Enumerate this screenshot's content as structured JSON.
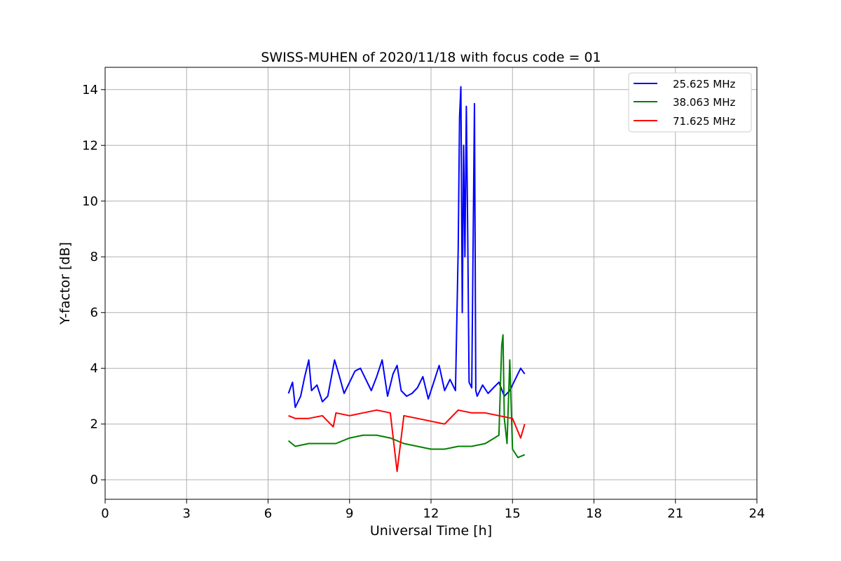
{
  "chart_data": {
    "type": "line",
    "title": "SWISS-MUHEN of 2020/11/18 with focus code = 01",
    "xlabel": "Universal Time [h]",
    "ylabel": "Y-factor [dB]",
    "xlim": [
      0,
      24
    ],
    "ylim": [
      -0.7,
      14.8
    ],
    "xticks": [
      0,
      3,
      6,
      9,
      12,
      15,
      18,
      21,
      24
    ],
    "xtick_labels": [
      "0",
      "3",
      "6",
      "9",
      "12",
      "15",
      "18",
      "21",
      "24"
    ],
    "yticks": [
      0,
      2,
      4,
      6,
      8,
      10,
      12,
      14
    ],
    "ytick_labels": [
      "0",
      "2",
      "4",
      "6",
      "8",
      "10",
      "12",
      "14"
    ],
    "grid": true,
    "legend_position": "top-right",
    "series": [
      {
        "name": "25.625 MHz",
        "color": "#0000ff",
        "x": [
          6.75,
          6.9,
          7.0,
          7.2,
          7.35,
          7.5,
          7.6,
          7.8,
          8.0,
          8.2,
          8.45,
          8.6,
          8.8,
          9.0,
          9.2,
          9.4,
          9.6,
          9.8,
          10.0,
          10.2,
          10.4,
          10.6,
          10.75,
          10.9,
          11.1,
          11.3,
          11.5,
          11.7,
          11.9,
          12.1,
          12.3,
          12.5,
          12.7,
          12.9,
          13.0,
          13.05,
          13.1,
          13.15,
          13.2,
          13.25,
          13.3,
          13.35,
          13.4,
          13.5,
          13.6,
          13.65,
          13.7,
          13.9,
          14.1,
          14.3,
          14.5,
          14.7,
          14.9,
          15.1,
          15.3,
          15.45
        ],
        "y": [
          3.1,
          3.5,
          2.6,
          3.0,
          3.7,
          4.3,
          3.2,
          3.4,
          2.8,
          3.0,
          4.3,
          3.8,
          3.1,
          3.5,
          3.9,
          4.0,
          3.6,
          3.2,
          3.7,
          4.3,
          3.0,
          3.8,
          4.1,
          3.2,
          3.0,
          3.1,
          3.3,
          3.7,
          2.9,
          3.5,
          4.1,
          3.2,
          3.6,
          3.2,
          8.3,
          13.0,
          14.1,
          6.0,
          12.0,
          8.0,
          13.4,
          9.0,
          3.5,
          3.3,
          13.5,
          3.2,
          3.0,
          3.4,
          3.1,
          3.3,
          3.5,
          3.0,
          3.2,
          3.6,
          4.0,
          3.8
        ]
      },
      {
        "name": "38.063 MHz",
        "color": "#008000",
        "x": [
          6.75,
          7.0,
          7.5,
          8.0,
          8.5,
          9.0,
          9.5,
          10.0,
          10.5,
          11.0,
          11.5,
          12.0,
          12.5,
          13.0,
          13.5,
          14.0,
          14.5,
          14.6,
          14.65,
          14.7,
          14.8,
          14.9,
          15.0,
          15.2,
          15.45
        ],
        "y": [
          1.4,
          1.2,
          1.3,
          1.3,
          1.3,
          1.5,
          1.6,
          1.6,
          1.5,
          1.3,
          1.2,
          1.1,
          1.1,
          1.2,
          1.2,
          1.3,
          1.6,
          4.8,
          5.2,
          2.2,
          1.3,
          4.3,
          1.1,
          0.8,
          0.9
        ]
      },
      {
        "name": "71.625 MHz",
        "color": "#ff0000",
        "x": [
          6.75,
          7.0,
          7.5,
          8.0,
          8.4,
          8.5,
          9.0,
          9.5,
          10.0,
          10.5,
          10.75,
          11.0,
          11.5,
          12.0,
          12.5,
          13.0,
          13.5,
          14.0,
          14.5,
          15.0,
          15.3,
          15.45
        ],
        "y": [
          2.3,
          2.2,
          2.2,
          2.3,
          1.9,
          2.4,
          2.3,
          2.4,
          2.5,
          2.4,
          0.3,
          2.3,
          2.2,
          2.1,
          2.0,
          2.5,
          2.4,
          2.4,
          2.3,
          2.2,
          1.5,
          2.0
        ]
      }
    ]
  }
}
